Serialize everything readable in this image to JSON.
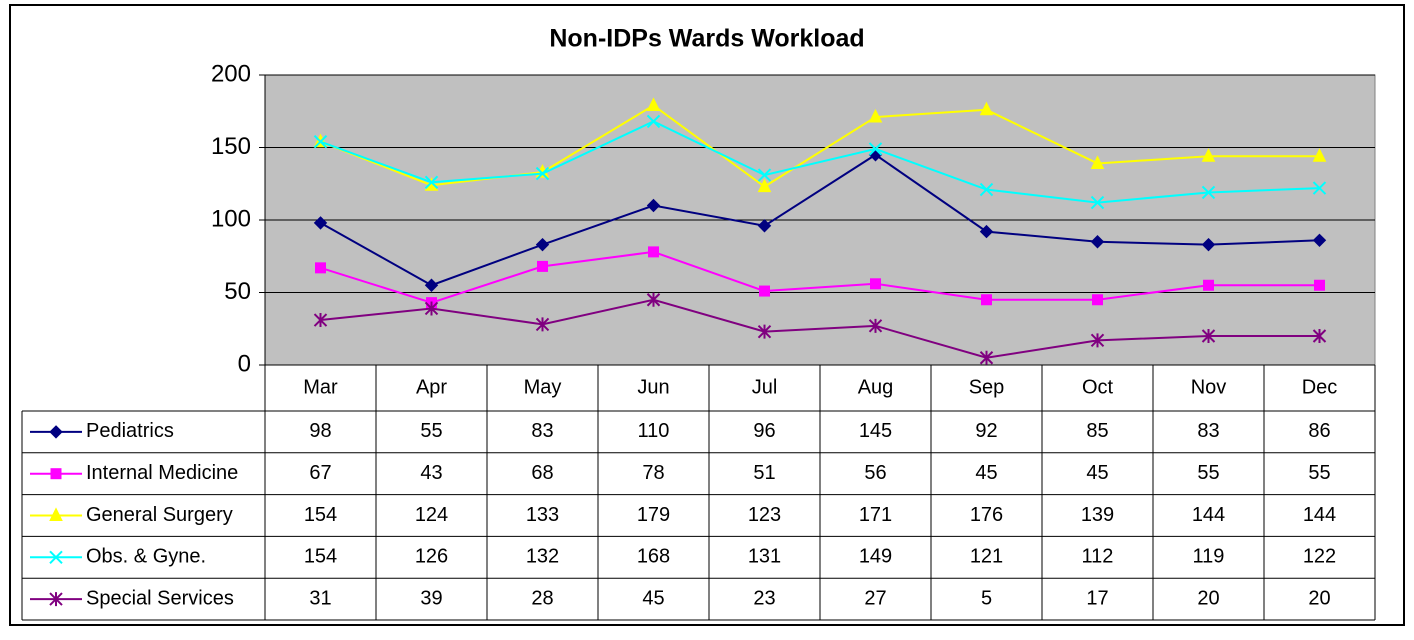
{
  "chart_data": {
    "type": "line",
    "title": "Non-IDPs  Wards Workload",
    "categories": [
      "Mar",
      "Apr",
      "May",
      "Jun",
      "Jul",
      "Aug",
      "Sep",
      "Oct",
      "Nov",
      "Dec"
    ],
    "series": [
      {
        "name": "Pediatrics",
        "color": "#000080",
        "marker": "diamond",
        "values": [
          98,
          55,
          83,
          110,
          96,
          145,
          92,
          85,
          83,
          86
        ]
      },
      {
        "name": "Internal Medicine",
        "color": "#FF00FF",
        "marker": "square",
        "values": [
          67,
          43,
          68,
          78,
          51,
          56,
          45,
          45,
          55,
          55
        ]
      },
      {
        "name": "General Surgery",
        "color": "#FFFF00",
        "marker": "triangle",
        "values": [
          154,
          124,
          133,
          179,
          123,
          171,
          176,
          139,
          144,
          144
        ]
      },
      {
        "name": "Obs. & Gyne.",
        "color": "#00FFFF",
        "marker": "x",
        "values": [
          154,
          126,
          132,
          168,
          131,
          149,
          121,
          112,
          119,
          122
        ]
      },
      {
        "name": "Special Services",
        "color": "#800080",
        "marker": "asterisk",
        "values": [
          31,
          39,
          28,
          45,
          23,
          27,
          5,
          17,
          20,
          20
        ]
      }
    ],
    "ylim": [
      0,
      200
    ],
    "yticks": [
      0,
      50,
      100,
      150,
      200
    ],
    "grid": true,
    "data_table": true
  }
}
